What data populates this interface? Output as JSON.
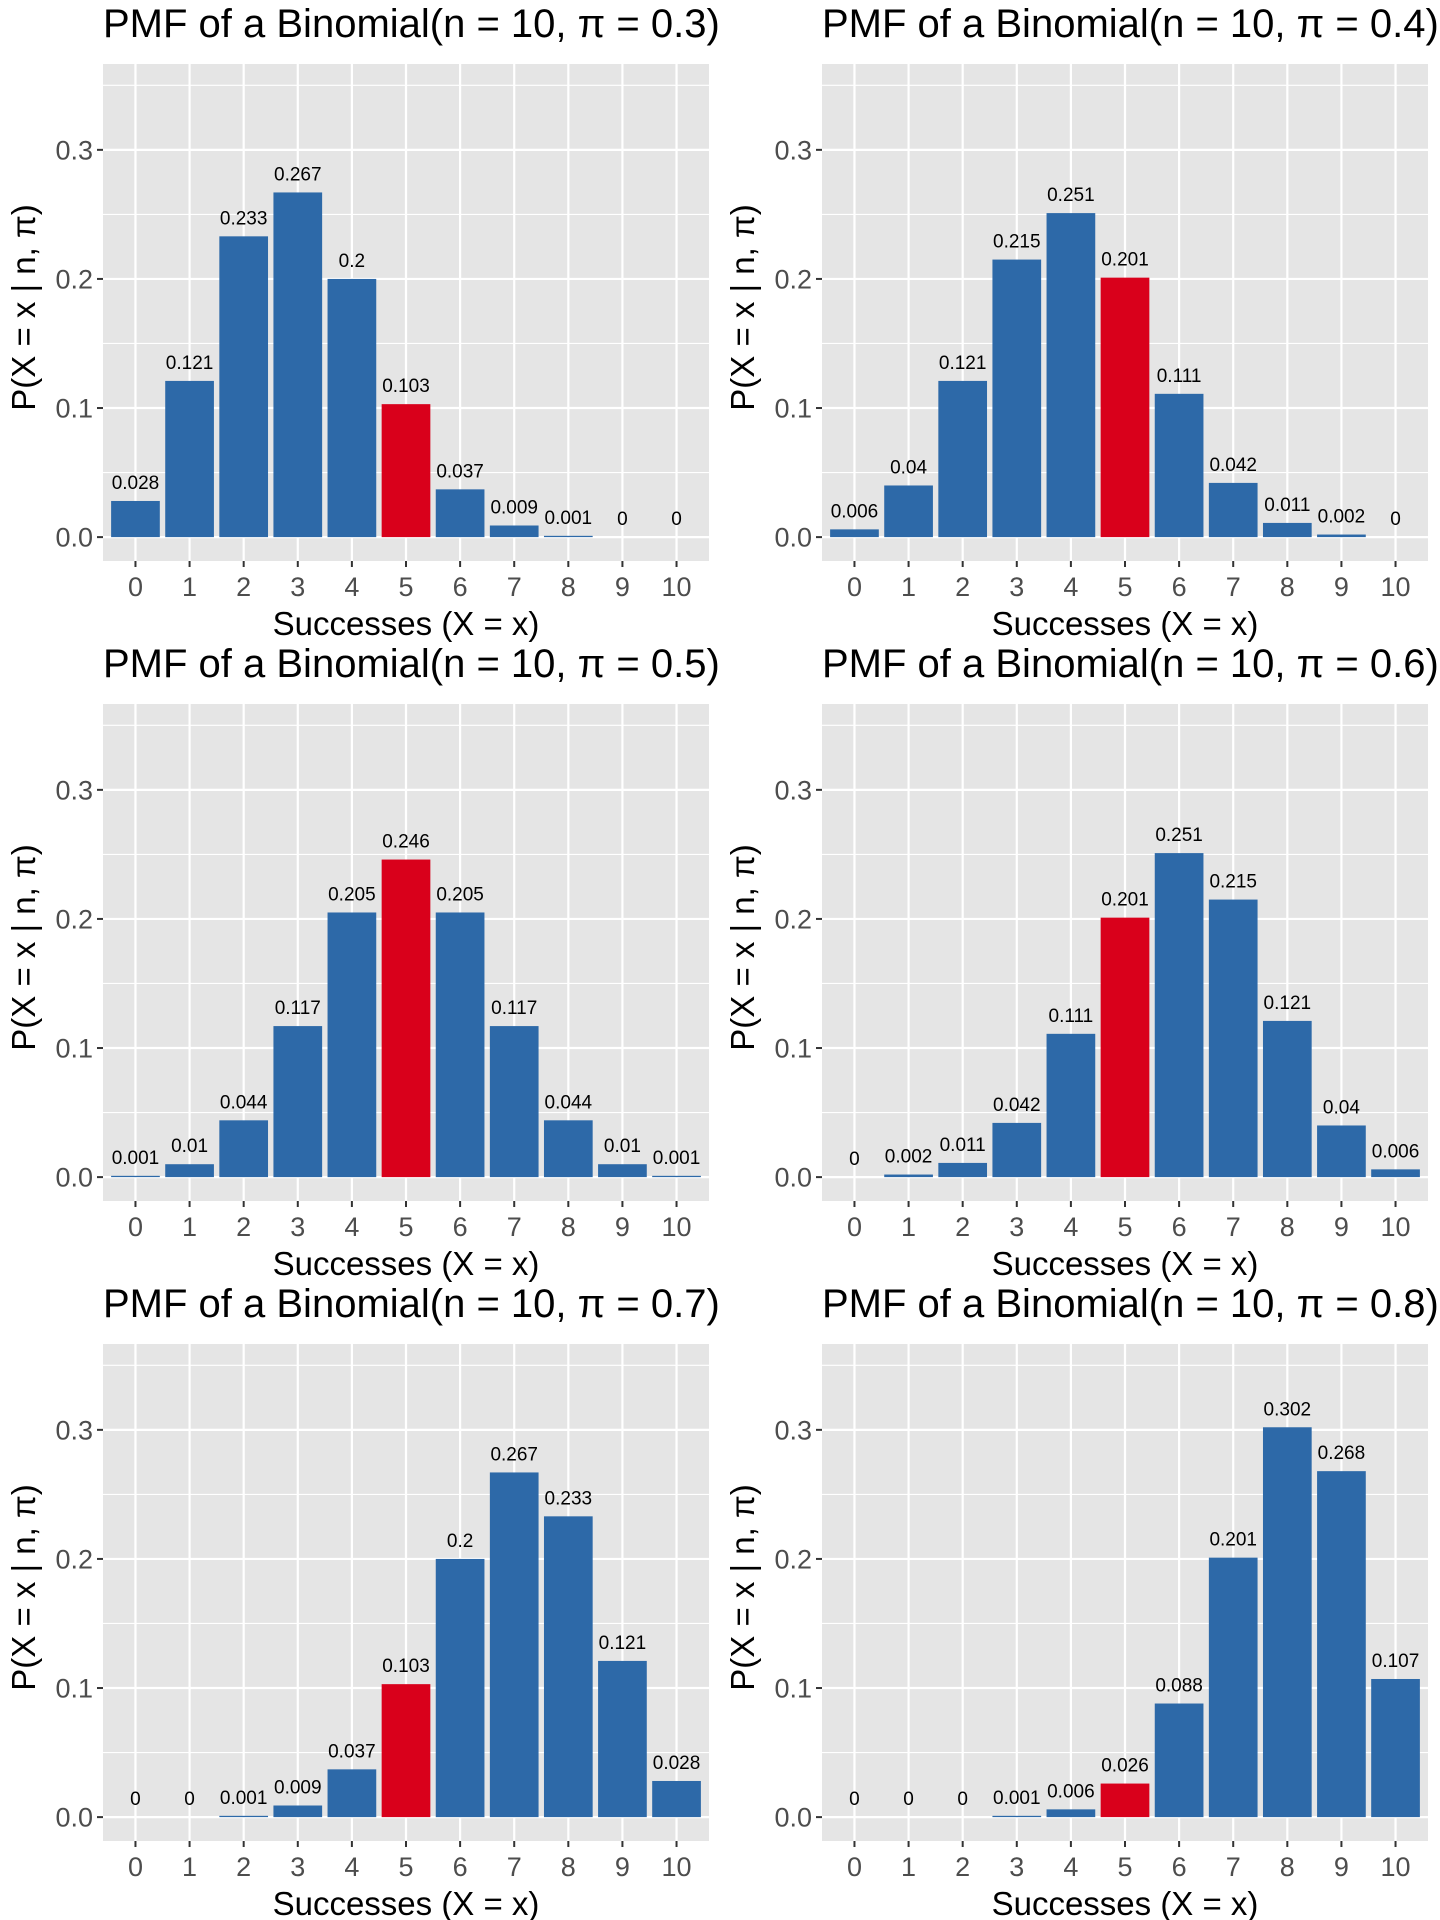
{
  "figure": {
    "highlight_category": "5",
    "colors": {
      "bar": "#2D69A8",
      "highlight": "#D9001B",
      "panel_bg": "#E5E5E5",
      "grid": "#FFFFFF"
    }
  },
  "chart_data": [
    {
      "type": "bar",
      "title": "PMF of a Binomial(n = 10, π = 0.3)",
      "xlabel": "Successes (X = x)",
      "ylabel": "P(X = x | n, π)",
      "categories": [
        "0",
        "1",
        "2",
        "3",
        "4",
        "5",
        "6",
        "7",
        "8",
        "9",
        "10"
      ],
      "values": [
        0.028,
        0.121,
        0.233,
        0.267,
        0.2,
        0.103,
        0.037,
        0.009,
        0.001,
        0,
        0
      ],
      "labels": [
        "0.028",
        "0.121",
        "0.233",
        "0.267",
        "0.2",
        "0.103",
        "0.037",
        "0.009",
        "0.001",
        "0",
        "0"
      ],
      "yticks": [
        "0.0",
        "0.1",
        "0.2",
        "0.3"
      ],
      "ylim": [
        0,
        0.35
      ],
      "grid": true
    },
    {
      "type": "bar",
      "title": "PMF of a Binomial(n = 10, π = 0.4)",
      "xlabel": "Successes (X = x)",
      "ylabel": "P(X = x | n, π)",
      "categories": [
        "0",
        "1",
        "2",
        "3",
        "4",
        "5",
        "6",
        "7",
        "8",
        "9",
        "10"
      ],
      "values": [
        0.006,
        0.04,
        0.121,
        0.215,
        0.251,
        0.201,
        0.111,
        0.042,
        0.011,
        0.002,
        0
      ],
      "labels": [
        "0.006",
        "0.04",
        "0.121",
        "0.215",
        "0.251",
        "0.201",
        "0.111",
        "0.042",
        "0.011",
        "0.002",
        "0"
      ],
      "yticks": [
        "0.0",
        "0.1",
        "0.2",
        "0.3"
      ],
      "ylim": [
        0,
        0.35
      ],
      "grid": true
    },
    {
      "type": "bar",
      "title": "PMF of a Binomial(n = 10, π = 0.5)",
      "xlabel": "Successes (X = x)",
      "ylabel": "P(X = x | n, π)",
      "categories": [
        "0",
        "1",
        "2",
        "3",
        "4",
        "5",
        "6",
        "7",
        "8",
        "9",
        "10"
      ],
      "values": [
        0.001,
        0.01,
        0.044,
        0.117,
        0.205,
        0.246,
        0.205,
        0.117,
        0.044,
        0.01,
        0.001
      ],
      "labels": [
        "0.001",
        "0.01",
        "0.044",
        "0.117",
        "0.205",
        "0.246",
        "0.205",
        "0.117",
        "0.044",
        "0.01",
        "0.001"
      ],
      "yticks": [
        "0.0",
        "0.1",
        "0.2",
        "0.3"
      ],
      "ylim": [
        0,
        0.35
      ],
      "grid": true
    },
    {
      "type": "bar",
      "title": "PMF of a Binomial(n = 10, π = 0.6)",
      "xlabel": "Successes (X = x)",
      "ylabel": "P(X = x | n, π)",
      "categories": [
        "0",
        "1",
        "2",
        "3",
        "4",
        "5",
        "6",
        "7",
        "8",
        "9",
        "10"
      ],
      "values": [
        0,
        0.002,
        0.011,
        0.042,
        0.111,
        0.201,
        0.251,
        0.215,
        0.121,
        0.04,
        0.006
      ],
      "labels": [
        "0",
        "0.002",
        "0.011",
        "0.042",
        "0.111",
        "0.201",
        "0.251",
        "0.215",
        "0.121",
        "0.04",
        "0.006"
      ],
      "yticks": [
        "0.0",
        "0.1",
        "0.2",
        "0.3"
      ],
      "ylim": [
        0,
        0.35
      ],
      "grid": true
    },
    {
      "type": "bar",
      "title": "PMF of a Binomial(n = 10, π = 0.7)",
      "xlabel": "Successes (X = x)",
      "ylabel": "P(X = x | n, π)",
      "categories": [
        "0",
        "1",
        "2",
        "3",
        "4",
        "5",
        "6",
        "7",
        "8",
        "9",
        "10"
      ],
      "values": [
        0,
        0,
        0.001,
        0.009,
        0.037,
        0.103,
        0.2,
        0.267,
        0.233,
        0.121,
        0.028
      ],
      "labels": [
        "0",
        "0",
        "0.001",
        "0.009",
        "0.037",
        "0.103",
        "0.2",
        "0.267",
        "0.233",
        "0.121",
        "0.028"
      ],
      "yticks": [
        "0.0",
        "0.1",
        "0.2",
        "0.3"
      ],
      "ylim": [
        0,
        0.35
      ],
      "grid": true
    },
    {
      "type": "bar",
      "title": "PMF of a Binomial(n = 10, π = 0.8)",
      "xlabel": "Successes (X = x)",
      "ylabel": "P(X = x | n, π)",
      "categories": [
        "0",
        "1",
        "2",
        "3",
        "4",
        "5",
        "6",
        "7",
        "8",
        "9",
        "10"
      ],
      "values": [
        0,
        0,
        0,
        0.001,
        0.006,
        0.026,
        0.088,
        0.201,
        0.302,
        0.268,
        0.107
      ],
      "labels": [
        "0",
        "0",
        "0",
        "0.001",
        "0.006",
        "0.026",
        "0.088",
        "0.201",
        "0.302",
        "0.268",
        "0.107"
      ],
      "yticks": [
        "0.0",
        "0.1",
        "0.2",
        "0.3"
      ],
      "ylim": [
        0,
        0.35
      ],
      "grid": true
    }
  ]
}
